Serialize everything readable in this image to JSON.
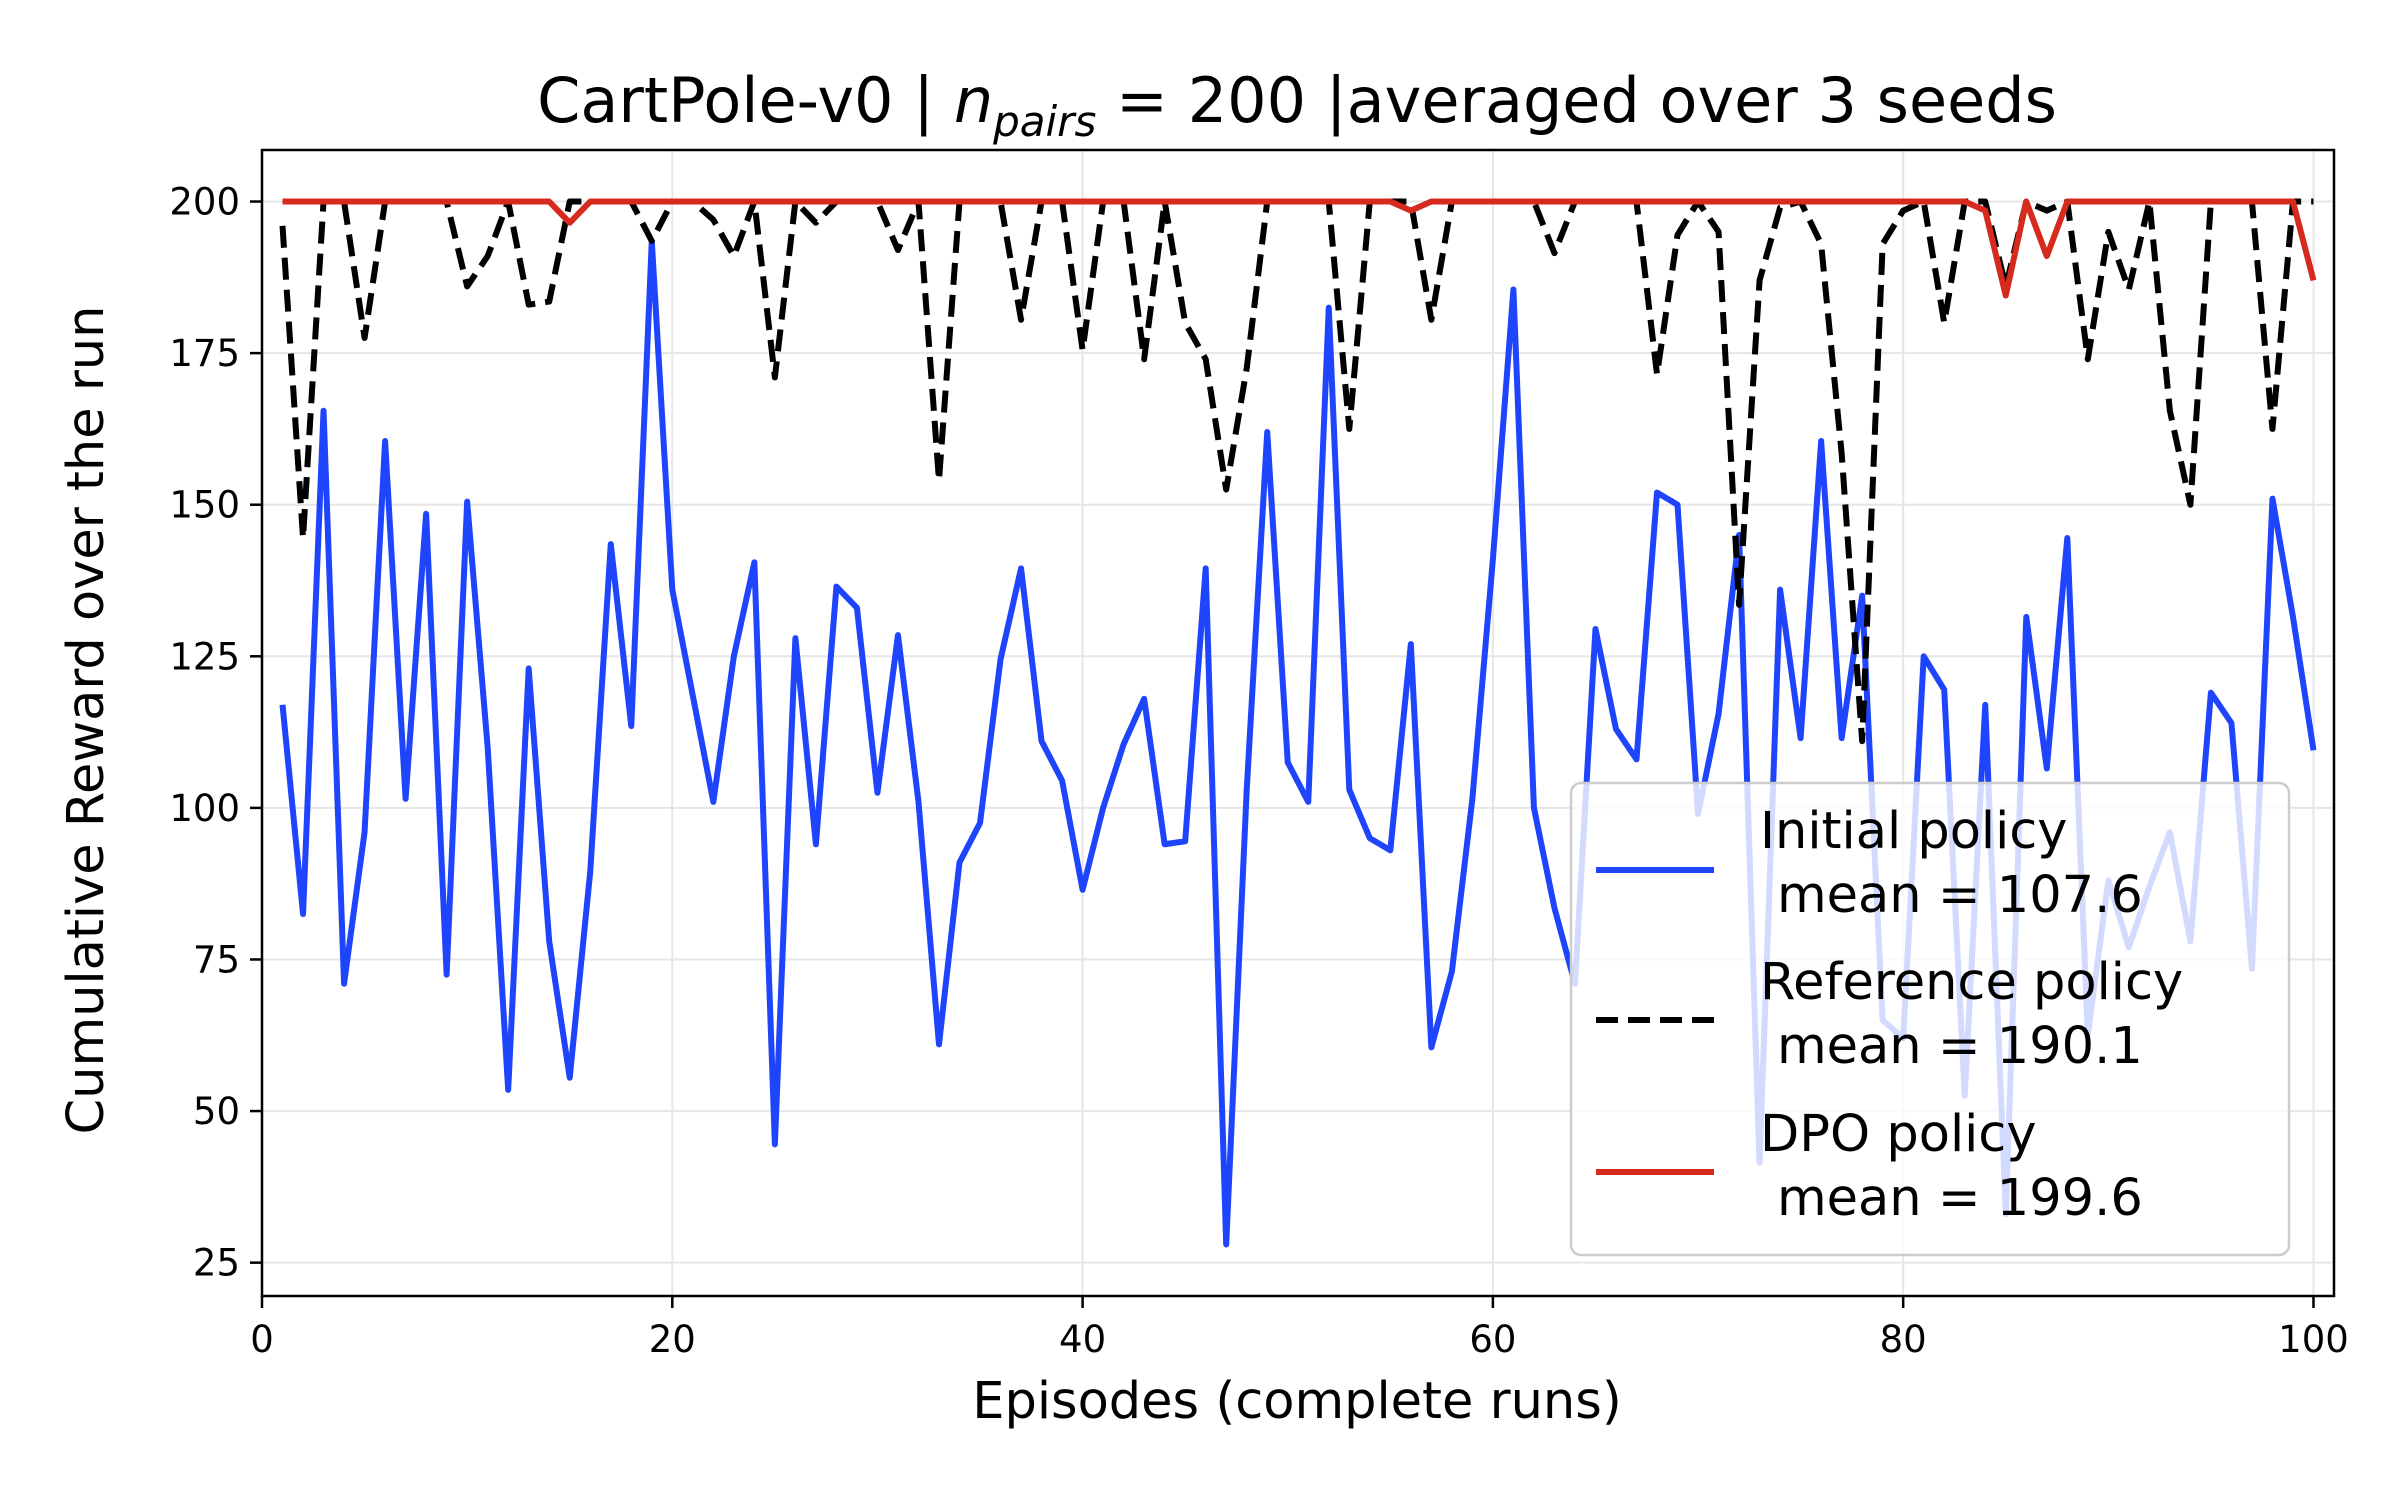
{
  "chart_data": {
    "type": "line",
    "title": {
      "prefix": "CartPole-v0 | ",
      "math_var": "n",
      "math_sub": "pairs",
      "math_rest": " = 200 |",
      "suffix": "averaged over 3 seeds"
    },
    "xlabel": "Episodes (complete runs)",
    "ylabel": "Cumulative Reward over the run",
    "xlim": [
      0,
      101
    ],
    "ylim": [
      19.5,
      208.5
    ],
    "xticks": [
      0,
      20,
      40,
      60,
      80,
      100
    ],
    "yticks": [
      25,
      50,
      75,
      100,
      125,
      150,
      175,
      200
    ],
    "grid": true,
    "legend_position": "lower right",
    "colors": {
      "initial": "#1f45fc",
      "reference": "#000000",
      "dpo": "#d62a1e"
    },
    "series": [
      {
        "key": "initial",
        "name": "Initial policy",
        "mean_label": "mean = 107.6",
        "style": "solid",
        "values": [
          117,
          82.5,
          165.5,
          71,
          96,
          160.5,
          101.5,
          148.5,
          72.5,
          150.5,
          110,
          53.5,
          123,
          78,
          55.5,
          89.5,
          143.5,
          113.5,
          193.5,
          136,
          118.5,
          101,
          125,
          140.5,
          44.5,
          128,
          94,
          136.5,
          133,
          102.5,
          128.5,
          101,
          61,
          91,
          97.5,
          124.5,
          139.5,
          111,
          104.5,
          86.5,
          100,
          110.5,
          118,
          94,
          94.5,
          139.5,
          28,
          103,
          162,
          107.5,
          101,
          182.5,
          103,
          95,
          93,
          127,
          60.5,
          73,
          101.5,
          141,
          185.5,
          100,
          83.5,
          71,
          129.5,
          113,
          108,
          152,
          150,
          99,
          115.5,
          145,
          41.5,
          136,
          111.5,
          160.5,
          111.5,
          135,
          65,
          62,
          125,
          119.5,
          52.5,
          117,
          33,
          131.5,
          106.5,
          144.5,
          62.5,
          88,
          77,
          87,
          96,
          78,
          119,
          114,
          73.5,
          151,
          131.5,
          109.5
        ]
      },
      {
        "key": "reference",
        "name": "Reference policy",
        "mean_label": "mean = 190.1",
        "style": "dashed",
        "values": [
          196,
          144.5,
          200,
          200,
          177.5,
          200,
          200,
          200,
          200,
          186,
          191,
          200,
          183,
          183.5,
          200,
          200,
          200,
          200,
          193.5,
          200,
          200,
          197,
          191,
          200,
          171,
          200,
          196.5,
          200,
          200,
          200,
          192,
          200,
          154,
          200,
          200,
          200,
          180.5,
          200,
          200,
          175.5,
          200,
          200,
          174,
          200,
          180,
          174,
          152.5,
          172.5,
          200,
          200,
          200,
          200,
          162.5,
          200,
          200,
          200,
          180.5,
          200,
          200,
          200,
          200,
          200,
          191.5,
          200,
          200,
          200,
          200,
          171.5,
          194.5,
          200,
          195,
          133.5,
          187,
          199,
          200,
          193,
          158.5,
          111,
          193,
          198.5,
          200,
          180,
          200,
          200,
          186,
          200,
          198.5,
          200,
          174,
          195,
          185.5,
          200,
          165.5,
          150,
          200,
          200,
          200,
          162.5,
          200,
          200
        ]
      },
      {
        "key": "dpo",
        "name": "DPO policy",
        "mean_label": "mean = 199.6",
        "style": "solid",
        "values": [
          200,
          200,
          200,
          200,
          200,
          200,
          200,
          200,
          200,
          200,
          200,
          200,
          200,
          200,
          196.5,
          200,
          200,
          200,
          200,
          200,
          200,
          200,
          200,
          200,
          200,
          200,
          200,
          200,
          200,
          200,
          200,
          200,
          200,
          200,
          200,
          200,
          200,
          200,
          200,
          200,
          200,
          200,
          200,
          200,
          200,
          200,
          200,
          200,
          200,
          200,
          200,
          200,
          200,
          200,
          200,
          198.5,
          200,
          200,
          200,
          200,
          200,
          200,
          200,
          200,
          200,
          200,
          200,
          200,
          200,
          200,
          200,
          200,
          200,
          200,
          200,
          200,
          200,
          200,
          200,
          200,
          200,
          200,
          200,
          198.5,
          184.5,
          200,
          191,
          200,
          200,
          200,
          200,
          200,
          200,
          200,
          200,
          200,
          200,
          200,
          200,
          187
        ]
      }
    ]
  }
}
